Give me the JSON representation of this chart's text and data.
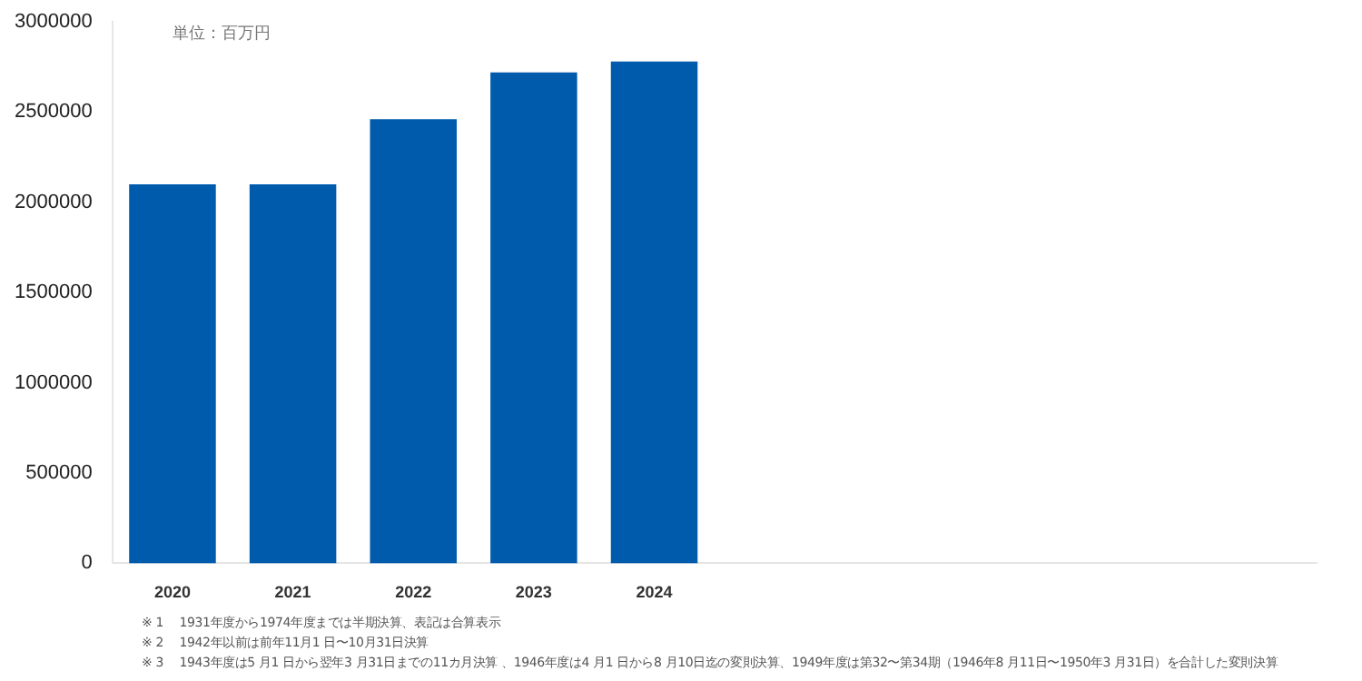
{
  "chart_data": {
    "type": "bar",
    "categories": [
      "2020",
      "2021",
      "2022",
      "2023",
      "2024",
      null,
      null,
      null,
      null,
      null
    ],
    "values": [
      2100000,
      2100000,
      2460000,
      2720000,
      2780000,
      null,
      null,
      null,
      null,
      null
    ],
    "color": "#005bac",
    "ylim": [
      0,
      3000000
    ],
    "yticks": [
      0,
      500000,
      1000000,
      1500000,
      2000000,
      2500000,
      3000000
    ],
    "grid": false,
    "legend": false,
    "annotations": [
      "単位：百万円",
      "※ 1　 1931年度から1974年度までは半期決算、表記は合算表示",
      "※ 2　 1942年以前は前年11月1 日〜10月31日決算",
      "※ 3　 1943年度は5 月1 日から翌年3 月31日までの11カ月決算 、1946年度は4 月1 日から8 月10日迄の変則決算、1949年度は第32〜第34期（1946年8 月11日〜1950年3 月31日）を合計した変則決算"
    ]
  }
}
